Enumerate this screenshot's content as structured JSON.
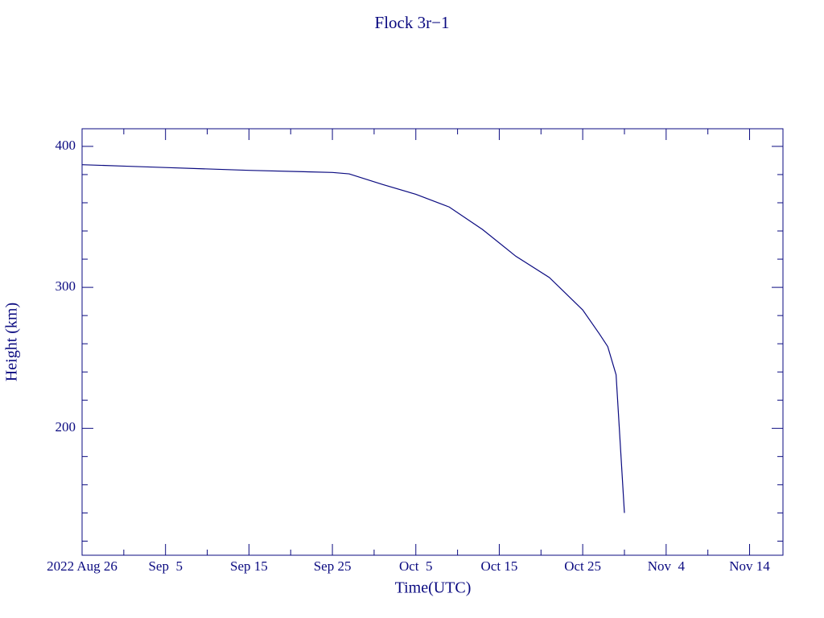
{
  "chart_data": {
    "type": "line",
    "title": "Flock 3r−1",
    "x_label": "Time(UTC)",
    "y_label": "Height (km)",
    "color": "#0a0a80",
    "x": [
      "2022-08-26",
      "2022-08-31",
      "2022-09-05",
      "2022-09-15",
      "2022-09-25",
      "2022-09-27",
      "2022-10-01",
      "2022-10-05",
      "2022-10-09",
      "2022-10-13",
      "2022-10-17",
      "2022-10-21",
      "2022-10-25",
      "2022-10-27",
      "2022-10-28",
      "2022-10-29",
      "2022-10-30"
    ],
    "values": [
      387,
      386,
      385,
      383,
      381.5,
      380.5,
      373,
      366,
      357,
      341,
      322,
      307,
      284,
      267,
      258,
      238,
      140
    ],
    "xlim": [
      "2022-08-26",
      "2022-11-18"
    ],
    "xticks": [
      {
        "value": "2022-08-26",
        "label": "2022 Aug 26"
      },
      {
        "value": "2022-09-05",
        "label": "Sep  5"
      },
      {
        "value": "2022-09-15",
        "label": "Sep 15"
      },
      {
        "value": "2022-09-25",
        "label": "Sep 25"
      },
      {
        "value": "2022-10-05",
        "label": "Oct  5"
      },
      {
        "value": "2022-10-15",
        "label": "Oct 15"
      },
      {
        "value": "2022-10-25",
        "label": "Oct 25"
      },
      {
        "value": "2022-11-04",
        "label": "Nov  4"
      },
      {
        "value": "2022-11-14",
        "label": "Nov 14"
      }
    ],
    "xminorticks": [
      "2022-08-31",
      "2022-09-10",
      "2022-09-20",
      "2022-09-30",
      "2022-10-10",
      "2022-10-20",
      "2022-10-30",
      "2022-11-09"
    ],
    "ylim": [
      110,
      412.5
    ],
    "yticks": [
      200,
      300,
      400
    ],
    "yminorticks": [
      120,
      140,
      160,
      180,
      220,
      240,
      260,
      280,
      320,
      340,
      360,
      380
    ]
  }
}
